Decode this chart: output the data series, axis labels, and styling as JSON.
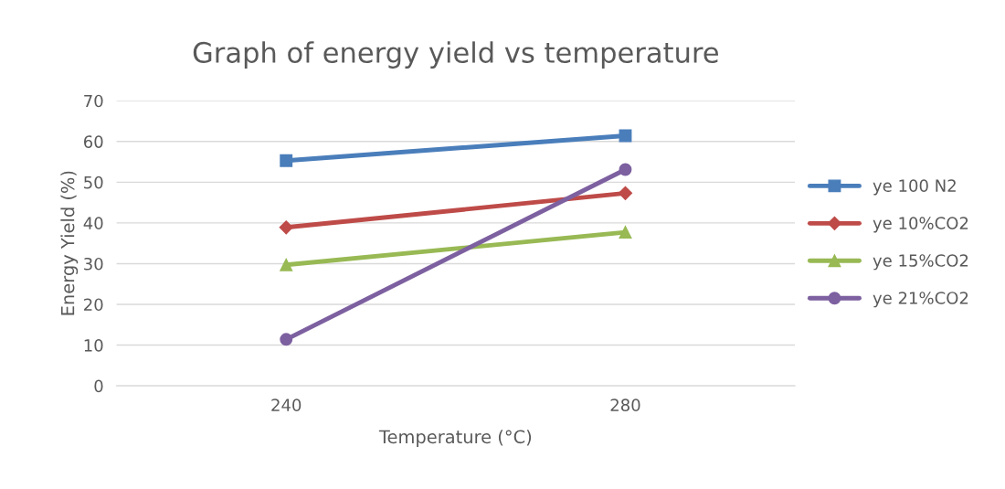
{
  "chart_data": {
    "type": "line",
    "title": "Graph of energy yield vs temperature",
    "xlabel": "Temperature (°C)",
    "ylabel": "Energy Yield (%)",
    "categories": [
      "240",
      "280"
    ],
    "series": [
      {
        "name": "ye 100 N2",
        "color": "#4a7ebb",
        "marker": "square",
        "values": [
          55.3,
          61.4
        ]
      },
      {
        "name": "ye 10%CO2",
        "color": "#be4b48",
        "marker": "diamond",
        "values": [
          38.9,
          47.3
        ]
      },
      {
        "name": "ye 15%CO2",
        "color": "#98b954",
        "marker": "triangle",
        "values": [
          29.7,
          37.7
        ]
      },
      {
        "name": "ye 21%CO2",
        "color": "#7d60a0",
        "marker": "circle",
        "values": [
          11.4,
          53.1
        ]
      }
    ],
    "ylim": [
      0,
      70
    ],
    "yticks": [
      0,
      10,
      20,
      30,
      40,
      50,
      60,
      70
    ],
    "grid": "y",
    "legend": "right",
    "line_style": "solid"
  }
}
